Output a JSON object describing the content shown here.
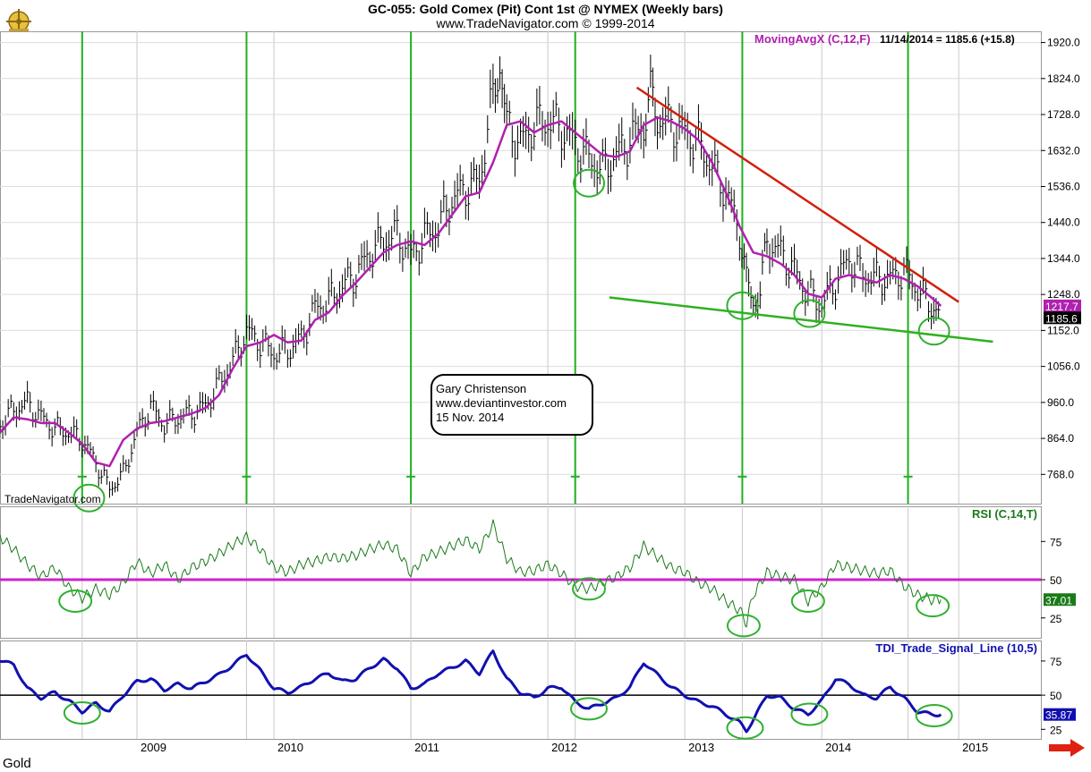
{
  "header": {
    "title": "GC-055:  Gold Comex (Pit) Cont 1st @ NYMEX  (Weekly bars)",
    "subtitle": "www.TradeNavigator.com © 1999-2014"
  },
  "footer_label": "Gold",
  "watermark": "TradeNavigator.com",
  "annotation_box": [
    "Gary Christenson",
    "www.deviantinvestor.com",
    "15 Nov. 2014"
  ],
  "colors": {
    "price_bars": "#000000",
    "moving_avg": "#b020b0",
    "resistance": "#d02010",
    "support": "#30b020",
    "cycle_lines": "#20b020",
    "rsi_line": "#1a7a1a",
    "rsi_level": "#d020d0",
    "tdi_line": "#1010b0",
    "tdi_level": "#000000",
    "circles": "#30b030",
    "arrow": "#e02010"
  },
  "chart_data": [
    {
      "type": "line",
      "panel": "price",
      "title": "GC-055:  Gold Comex (Pit) Cont 1st @ NYMEX  (Weekly bars)",
      "indicator_label": "MovingAvgX (C,12,F)",
      "readout": "11/14/2014 = 1185.6 (+15.8)",
      "ylim": [
        690,
        1950
      ],
      "yticks": [
        768.0,
        864.0,
        960.0,
        1056.0,
        1152.0,
        1248.0,
        1344.0,
        1440.0,
        1536.0,
        1632.0,
        1728.0,
        1824.0,
        1920.0
      ],
      "ytick_labels": [
        "768.0",
        "864.0",
        "960.0",
        "1056.0",
        "1152.0",
        "1248.0",
        "1344.0",
        "1440.0",
        "1536.0",
        "1632.0",
        "1728.0",
        "1824.0",
        "1920.0"
      ],
      "last_values": [
        {
          "label": "1217.7",
          "value": 1217.7,
          "series": "MovingAvgX (C,12,F)"
        },
        {
          "label": "1185.6",
          "value": 1185.6,
          "series": "Close"
        }
      ],
      "series": [
        {
          "name": "Close",
          "x": [
            2008.0,
            2008.1,
            2008.2,
            2008.3,
            2008.4,
            2008.5,
            2008.6,
            2008.7,
            2008.8,
            2008.9,
            2009.0,
            2009.1,
            2009.2,
            2009.3,
            2009.4,
            2009.5,
            2009.6,
            2009.7,
            2009.8,
            2009.9,
            2010.0,
            2010.1,
            2010.2,
            2010.3,
            2010.4,
            2010.5,
            2010.6,
            2010.7,
            2010.8,
            2010.9,
            2011.0,
            2011.1,
            2011.2,
            2011.3,
            2011.4,
            2011.5,
            2011.6,
            2011.65,
            2011.7,
            2011.8,
            2011.9,
            2012.0,
            2012.1,
            2012.2,
            2012.3,
            2012.4,
            2012.5,
            2012.6,
            2012.7,
            2012.75,
            2012.8,
            2012.9,
            2013.0,
            2013.1,
            2013.2,
            2013.3,
            2013.4,
            2013.45,
            2013.5,
            2013.55,
            2013.6,
            2013.7,
            2013.8,
            2013.9,
            2014.0,
            2014.1,
            2014.2,
            2014.3,
            2014.4,
            2014.5,
            2014.6,
            2014.7,
            2014.8,
            2014.87
          ],
          "values": [
            900,
            940,
            960,
            920,
            890,
            880,
            860,
            800,
            730,
            770,
            880,
            950,
            900,
            920,
            930,
            950,
            1010,
            1070,
            1150,
            1120,
            1090,
            1100,
            1130,
            1210,
            1230,
            1270,
            1300,
            1360,
            1390,
            1410,
            1350,
            1400,
            1430,
            1500,
            1530,
            1550,
            1780,
            1860,
            1700,
            1650,
            1700,
            1710,
            1690,
            1650,
            1610,
            1580,
            1620,
            1660,
            1700,
            1780,
            1720,
            1700,
            1680,
            1650,
            1590,
            1520,
            1420,
            1280,
            1230,
            1250,
            1390,
            1360,
            1310,
            1250,
            1220,
            1280,
            1340,
            1300,
            1290,
            1290,
            1310,
            1260,
            1220,
            1186
          ]
        },
        {
          "name": "MovingAvgX (C,12,F)",
          "x": [
            2008.0,
            2008.1,
            2008.2,
            2008.3,
            2008.4,
            2008.5,
            2008.6,
            2008.7,
            2008.8,
            2008.9,
            2009.0,
            2009.1,
            2009.2,
            2009.3,
            2009.4,
            2009.5,
            2009.6,
            2009.7,
            2009.8,
            2009.9,
            2010.0,
            2010.1,
            2010.2,
            2010.3,
            2010.4,
            2010.5,
            2010.6,
            2010.7,
            2010.8,
            2010.9,
            2011.0,
            2011.1,
            2011.2,
            2011.3,
            2011.4,
            2011.5,
            2011.6,
            2011.7,
            2011.8,
            2011.9,
            2012.0,
            2012.1,
            2012.2,
            2012.3,
            2012.4,
            2012.5,
            2012.6,
            2012.7,
            2012.8,
            2012.9,
            2013.0,
            2013.1,
            2013.2,
            2013.3,
            2013.4,
            2013.5,
            2013.6,
            2013.7,
            2013.8,
            2013.9,
            2014.0,
            2014.1,
            2014.2,
            2014.3,
            2014.4,
            2014.5,
            2014.6,
            2014.7,
            2014.8,
            2014.87
          ],
          "values": [
            880,
            920,
            915,
            905,
            905,
            880,
            850,
            800,
            790,
            860,
            890,
            905,
            910,
            920,
            930,
            945,
            980,
            1050,
            1110,
            1120,
            1140,
            1120,
            1125,
            1180,
            1200,
            1245,
            1280,
            1320,
            1360,
            1380,
            1390,
            1380,
            1410,
            1460,
            1510,
            1520,
            1600,
            1700,
            1710,
            1680,
            1700,
            1710,
            1680,
            1650,
            1620,
            1615,
            1630,
            1700,
            1720,
            1710,
            1690,
            1660,
            1600,
            1520,
            1430,
            1360,
            1350,
            1330,
            1300,
            1250,
            1240,
            1290,
            1300,
            1290,
            1280,
            1300,
            1290,
            1270,
            1240,
            1217.7
          ]
        }
      ],
      "trendlines": [
        {
          "name": "resistance",
          "x": [
            2012.65,
            2015.0
          ],
          "y": [
            1800,
            1228
          ]
        },
        {
          "name": "support",
          "x": [
            2012.45,
            2015.25
          ],
          "y": [
            1240,
            1122
          ]
        }
      ],
      "cycle_lines_x": [
        2008.6,
        2009.8,
        2011.0,
        2012.2,
        2013.42,
        2014.63
      ],
      "circled_lows": [
        {
          "x": 2008.65,
          "y": 705
        },
        {
          "x": 2012.3,
          "y": 1545
        },
        {
          "x": 2013.42,
          "y": 1218
        },
        {
          "x": 2013.91,
          "y": 1197
        },
        {
          "x": 2014.82,
          "y": 1150
        }
      ]
    },
    {
      "type": "line",
      "panel": "rsi",
      "indicator_label": "RSI (C,14,T)",
      "ylim": [
        12,
        98
      ],
      "yticks": [
        25,
        50,
        75
      ],
      "ytick_labels": [
        "25",
        "50",
        "75"
      ],
      "level_line": 50,
      "last_value": {
        "label": "37.01",
        "value": 37.01
      },
      "series": [
        {
          "name": "RSI (C,14,T)",
          "x": [
            2008.0,
            2008.1,
            2008.2,
            2008.3,
            2008.4,
            2008.5,
            2008.6,
            2008.7,
            2008.8,
            2008.9,
            2009.0,
            2009.1,
            2009.2,
            2009.3,
            2009.4,
            2009.5,
            2009.6,
            2009.7,
            2009.8,
            2009.9,
            2010.0,
            2010.1,
            2010.2,
            2010.3,
            2010.4,
            2010.5,
            2010.6,
            2010.7,
            2010.8,
            2010.9,
            2011.0,
            2011.1,
            2011.2,
            2011.3,
            2011.4,
            2011.5,
            2011.6,
            2011.7,
            2011.8,
            2011.9,
            2012.0,
            2012.1,
            2012.2,
            2012.3,
            2012.4,
            2012.5,
            2012.6,
            2012.7,
            2012.8,
            2012.9,
            2013.0,
            2013.1,
            2013.2,
            2013.3,
            2013.4,
            2013.45,
            2013.5,
            2013.6,
            2013.7,
            2013.8,
            2013.9,
            2014.0,
            2014.1,
            2014.2,
            2014.3,
            2014.4,
            2014.5,
            2014.6,
            2014.7,
            2014.8,
            2014.87
          ],
          "values": [
            78,
            70,
            60,
            52,
            58,
            45,
            38,
            44,
            40,
            48,
            62,
            54,
            60,
            50,
            58,
            62,
            67,
            73,
            78,
            70,
            58,
            55,
            60,
            62,
            65,
            64,
            66,
            70,
            73,
            70,
            54,
            65,
            68,
            72,
            76,
            70,
            86,
            64,
            55,
            56,
            60,
            54,
            46,
            44,
            48,
            52,
            58,
            72,
            65,
            58,
            55,
            48,
            44,
            36,
            30,
            22,
            40,
            55,
            52,
            50,
            36,
            45,
            60,
            58,
            56,
            54,
            56,
            46,
            40,
            37,
            37.01
          ]
        }
      ],
      "circled": [
        {
          "x": 2008.55,
          "y": 36
        },
        {
          "x": 2012.3,
          "y": 44
        },
        {
          "x": 2013.43,
          "y": 20
        },
        {
          "x": 2013.9,
          "y": 36
        },
        {
          "x": 2014.81,
          "y": 33
        }
      ]
    },
    {
      "type": "line",
      "panel": "tdi",
      "indicator_label": "TDI_Trade_Signal_Line (10,5)",
      "ylim": [
        18,
        90
      ],
      "yticks": [
        25,
        50,
        75
      ],
      "ytick_labels": [
        "25",
        "50",
        "75"
      ],
      "level_line": 50,
      "last_value": {
        "label": "35.87",
        "value": 35.87
      },
      "series": [
        {
          "name": "TDI_Trade_Signal_Line (10,5)",
          "x": [
            2008.0,
            2008.1,
            2008.2,
            2008.3,
            2008.4,
            2008.5,
            2008.6,
            2008.7,
            2008.8,
            2008.9,
            2009.0,
            2009.1,
            2009.2,
            2009.3,
            2009.4,
            2009.5,
            2009.6,
            2009.7,
            2009.8,
            2009.9,
            2010.0,
            2010.1,
            2010.2,
            2010.3,
            2010.4,
            2010.5,
            2010.6,
            2010.7,
            2010.8,
            2010.9,
            2011.0,
            2011.1,
            2011.2,
            2011.3,
            2011.4,
            2011.5,
            2011.6,
            2011.7,
            2011.8,
            2011.9,
            2012.0,
            2012.1,
            2012.2,
            2012.3,
            2012.4,
            2012.5,
            2012.6,
            2012.7,
            2012.8,
            2012.9,
            2013.0,
            2013.1,
            2013.2,
            2013.3,
            2013.4,
            2013.45,
            2013.5,
            2013.6,
            2013.7,
            2013.8,
            2013.9,
            2014.0,
            2014.1,
            2014.2,
            2014.3,
            2014.4,
            2014.5,
            2014.6,
            2014.7,
            2014.8,
            2014.87
          ],
          "values": [
            76,
            72,
            55,
            48,
            52,
            46,
            38,
            44,
            38,
            50,
            60,
            62,
            54,
            58,
            55,
            60,
            65,
            72,
            80,
            68,
            55,
            52,
            56,
            62,
            66,
            60,
            62,
            70,
            76,
            70,
            55,
            58,
            66,
            70,
            75,
            66,
            82,
            62,
            52,
            48,
            55,
            56,
            45,
            40,
            44,
            48,
            56,
            74,
            65,
            56,
            50,
            45,
            42,
            36,
            30,
            24,
            32,
            50,
            48,
            40,
            36,
            46,
            62,
            58,
            50,
            48,
            56,
            48,
            38,
            36,
            35.87
          ]
        }
      ],
      "circled": [
        {
          "x": 2008.6,
          "y": 37
        },
        {
          "x": 2012.3,
          "y": 40
        },
        {
          "x": 2013.44,
          "y": 26
        },
        {
          "x": 2013.91,
          "y": 36
        },
        {
          "x": 2014.82,
          "y": 35
        }
      ]
    }
  ],
  "x_axis": {
    "xlim": [
      2008.0,
      2015.6
    ],
    "ticks": [
      2009,
      2010,
      2011,
      2012,
      2013,
      2014,
      2015
    ],
    "tick_labels": [
      "2009",
      "2010",
      "2011",
      "2012",
      "2013",
      "2014",
      "2015"
    ]
  }
}
